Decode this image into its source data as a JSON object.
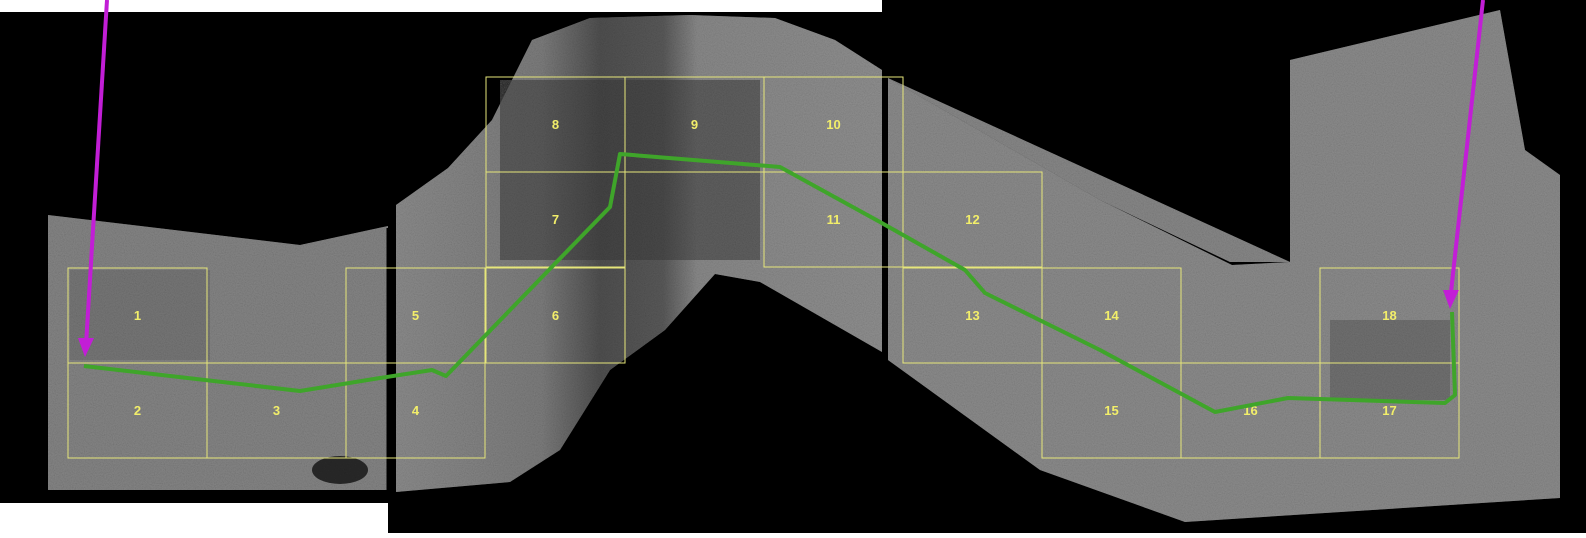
{
  "map": {
    "colors": {
      "background": "#000000",
      "imagery_light": "#8a8a8a",
      "imagery_dark": "#3e3e3e",
      "grid": "#e6e67a",
      "grid_label": "#f2ee6a",
      "route": "#3fa52a",
      "arrow": "#c21ed6"
    },
    "tiles": [
      {
        "id": "1",
        "label": "1"
      },
      {
        "id": "2",
        "label": "2"
      },
      {
        "id": "3",
        "label": "3"
      },
      {
        "id": "4",
        "label": "4"
      },
      {
        "id": "5",
        "label": "5"
      },
      {
        "id": "6",
        "label": "6"
      },
      {
        "id": "7",
        "label": "7"
      },
      {
        "id": "8",
        "label": "8"
      },
      {
        "id": "9",
        "label": "9"
      },
      {
        "id": "10",
        "label": "10"
      },
      {
        "id": "11",
        "label": "11"
      },
      {
        "id": "12",
        "label": "12"
      },
      {
        "id": "13",
        "label": "13"
      },
      {
        "id": "14",
        "label": "14"
      },
      {
        "id": "15",
        "label": "15"
      },
      {
        "id": "16",
        "label": "16"
      },
      {
        "id": "17",
        "label": "17"
      },
      {
        "id": "18",
        "label": "18"
      }
    ],
    "markers": [
      {
        "name": "route-start-arrow",
        "icon": "arrow-down-icon"
      },
      {
        "name": "route-end-arrow",
        "icon": "arrow-down-icon"
      }
    ]
  }
}
